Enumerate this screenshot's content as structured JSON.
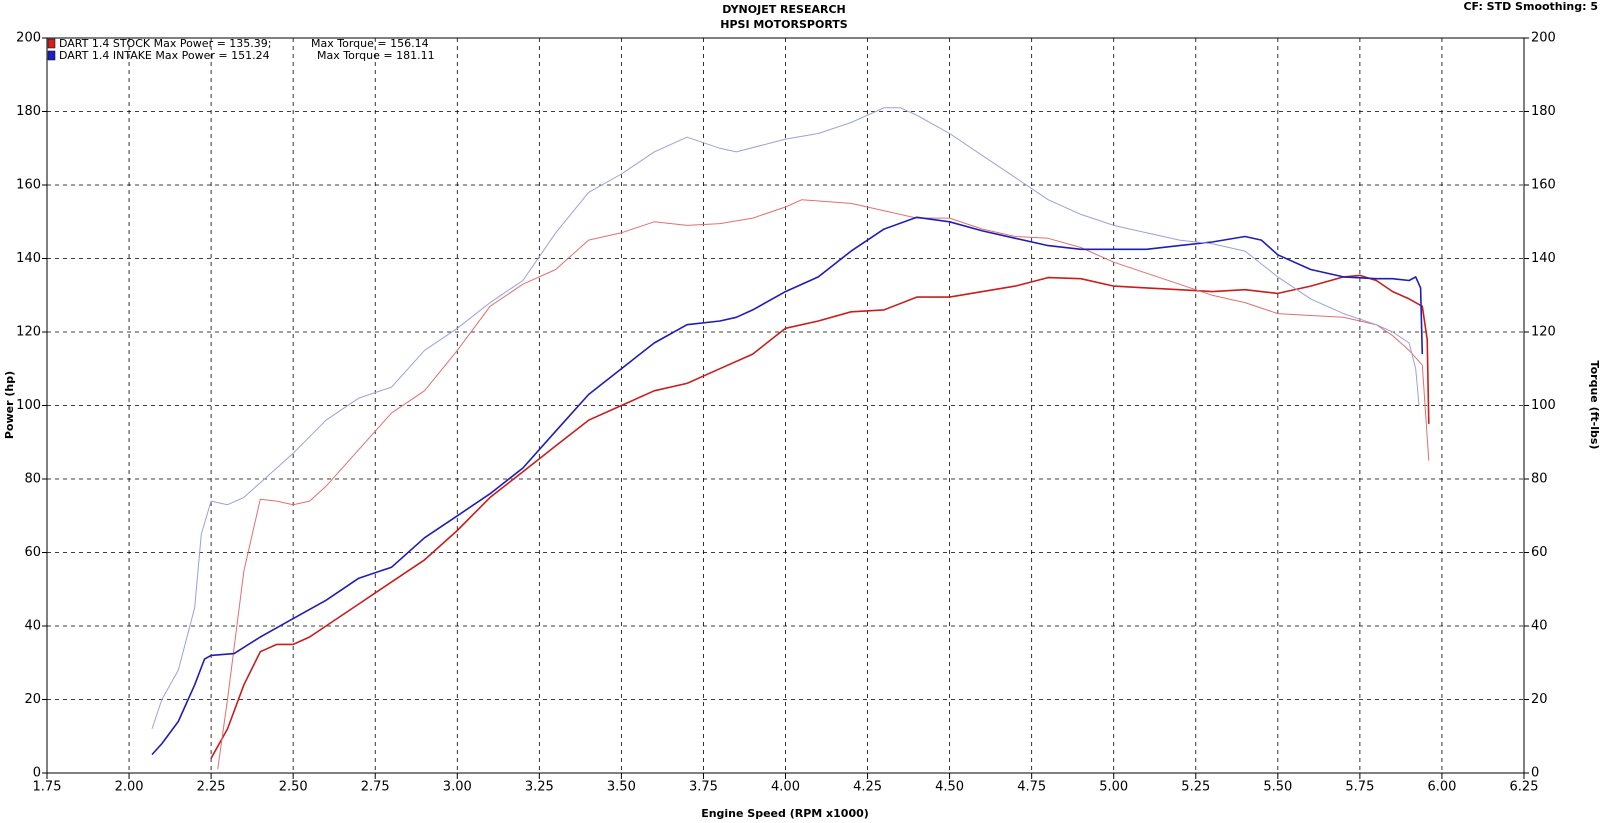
{
  "chart_data": {
    "type": "line",
    "title": "DYNOJET RESEARCH",
    "subtitle": "HPSI MOTORSPORTS",
    "settings_note": "CF: STD  Smoothing: 5",
    "x_label": "Engine Speed (RPM x1000)",
    "y_label": "Power (hp)",
    "y2_label": "Torque (ft-lbs)",
    "grid": true,
    "xlim": [
      1.75,
      6.25
    ],
    "xticks": [
      {
        "value": 1.75,
        "label": "1.75"
      },
      {
        "value": 2,
        "label": "2.00"
      },
      {
        "value": 2.25,
        "label": "2.25"
      },
      {
        "value": 2.5,
        "label": "2.50"
      },
      {
        "value": 2.75,
        "label": "2.75"
      },
      {
        "value": 3,
        "label": "3.00"
      },
      {
        "value": 3.25,
        "label": "3.25"
      },
      {
        "value": 3.5,
        "label": "3.50"
      },
      {
        "value": 3.75,
        "label": "3.75"
      },
      {
        "value": 4,
        "label": "4.00"
      },
      {
        "value": 4.25,
        "label": "4.25"
      },
      {
        "value": 4.5,
        "label": "4.50"
      },
      {
        "value": 4.75,
        "label": "4.75"
      },
      {
        "value": 5,
        "label": "5.00"
      },
      {
        "value": 5.25,
        "label": "5.25"
      },
      {
        "value": 5.5,
        "label": "5.50"
      },
      {
        "value": 5.75,
        "label": "5.75"
      },
      {
        "value": 6,
        "label": "6.00"
      },
      {
        "value": 6.25,
        "label": "6.25"
      }
    ],
    "ylim": [
      0,
      200
    ],
    "yticks": [
      0,
      20,
      40,
      60,
      80,
      100,
      120,
      140,
      160,
      180,
      200
    ],
    "y2lim": [
      0,
      200
    ],
    "y2ticks": [
      0,
      20,
      40,
      60,
      80,
      100,
      120,
      140,
      160,
      180,
      200
    ],
    "legend": [
      {
        "power": "DART 1.4 STOCK Max Power = 135.39;",
        "torque": "Max Torque = 156.14",
        "color": "#d02020"
      },
      {
        "power": "DART 1.4 INTAKE Max Power = 151.24",
        "torque": "Max Torque = 181.11",
        "color": "#2020c0"
      }
    ],
    "series": [
      {
        "color": "#c81e1e",
        "width": 1.6,
        "x": [
          2.25,
          2.3,
          2.35,
          2.4,
          2.45,
          2.5,
          2.55,
          2.6,
          2.7,
          2.8,
          2.9,
          3.0,
          3.1,
          3.2,
          3.3,
          3.4,
          3.5,
          3.6,
          3.7,
          3.8,
          3.9,
          4.0,
          4.1,
          4.2,
          4.3,
          4.4,
          4.5,
          4.6,
          4.7,
          4.8,
          4.9,
          5.0,
          5.1,
          5.2,
          5.3,
          5.4,
          5.5,
          5.6,
          5.7,
          5.75,
          5.8,
          5.85,
          5.9,
          5.94,
          5.955,
          5.96
        ],
        "values": [
          4,
          12,
          24,
          33,
          35,
          35,
          37,
          40,
          46,
          52,
          58,
          66,
          75,
          82,
          89,
          96,
          100,
          104,
          106,
          110,
          114,
          121,
          123,
          125.5,
          126,
          129.5,
          129.5,
          131,
          132.5,
          134.8,
          134.5,
          132.5,
          132,
          131.5,
          131,
          131.5,
          130.5,
          132.5,
          135,
          135.4,
          134,
          131,
          129,
          127,
          118,
          95
        ]
      },
      {
        "color": "#e07070",
        "width": 1,
        "axis": "y2",
        "x": [
          2.27,
          2.3,
          2.35,
          2.4,
          2.45,
          2.5,
          2.55,
          2.6,
          2.7,
          2.8,
          2.9,
          3.0,
          3.1,
          3.2,
          3.3,
          3.4,
          3.5,
          3.6,
          3.7,
          3.8,
          3.9,
          4.0,
          4.05,
          4.2,
          4.3,
          4.4,
          4.5,
          4.6,
          4.7,
          4.8,
          4.9,
          5.0,
          5.1,
          5.2,
          5.3,
          5.4,
          5.5,
          5.6,
          5.7,
          5.8,
          5.85,
          5.9,
          5.94,
          5.96
        ],
        "values": [
          1,
          20,
          55,
          74.5,
          74,
          73,
          74,
          78,
          88,
          98,
          104,
          115,
          127,
          133,
          137,
          145,
          147,
          150,
          149,
          149.5,
          151,
          154,
          156,
          155,
          153,
          151,
          151,
          148,
          146,
          145.5,
          143,
          139,
          136,
          133,
          130,
          128,
          125,
          124.5,
          124,
          122,
          119,
          115,
          111,
          85
        ]
      },
      {
        "color": "#1e1eb4",
        "width": 1.6,
        "x": [
          2.07,
          2.1,
          2.15,
          2.2,
          2.23,
          2.25,
          2.32,
          2.4,
          2.5,
          2.6,
          2.7,
          2.8,
          2.9,
          3.0,
          3.1,
          3.2,
          3.3,
          3.4,
          3.5,
          3.6,
          3.7,
          3.8,
          3.85,
          3.9,
          4.0,
          4.1,
          4.2,
          4.3,
          4.4,
          4.5,
          4.6,
          4.7,
          4.8,
          4.9,
          5.0,
          5.1,
          5.2,
          5.3,
          5.4,
          5.45,
          5.5,
          5.6,
          5.7,
          5.8,
          5.85,
          5.9,
          5.92,
          5.935,
          5.94
        ],
        "values": [
          5,
          8,
          14,
          24,
          31,
          32,
          32.5,
          37,
          42,
          47,
          53,
          56,
          64,
          70,
          76,
          83,
          93,
          103,
          110,
          117,
          122,
          123,
          124,
          126,
          131,
          135,
          142,
          148,
          151.2,
          150,
          147.5,
          145.5,
          143.5,
          142.5,
          142.5,
          142.5,
          143.5,
          144.5,
          146,
          145,
          141,
          137,
          135,
          134.5,
          134.5,
          134,
          135,
          132,
          114
        ]
      },
      {
        "color": "#9aa0e0",
        "width": 1,
        "axis": "y2",
        "x": [
          2.07,
          2.1,
          2.15,
          2.2,
          2.22,
          2.25,
          2.3,
          2.35,
          2.4,
          2.5,
          2.6,
          2.7,
          2.8,
          2.9,
          3.0,
          3.1,
          3.2,
          3.3,
          3.4,
          3.5,
          3.6,
          3.7,
          3.8,
          3.85,
          4.0,
          4.1,
          4.2,
          4.3,
          4.35,
          4.4,
          4.5,
          4.6,
          4.7,
          4.8,
          4.9,
          5.0,
          5.1,
          5.2,
          5.3,
          5.4,
          5.5,
          5.6,
          5.7,
          5.8,
          5.85,
          5.9,
          5.92,
          5.93
        ],
        "values": [
          12,
          20,
          28,
          45,
          65,
          74,
          73,
          75,
          79,
          87,
          96,
          102,
          105,
          115,
          121,
          128,
          134,
          147,
          158,
          163,
          169,
          173,
          170,
          169,
          172.5,
          174,
          177,
          181,
          181,
          179,
          174,
          168,
          162,
          156,
          152,
          149,
          147,
          145,
          144,
          142,
          135,
          129,
          125,
          122,
          120,
          117,
          110,
          100
        ]
      }
    ]
  }
}
